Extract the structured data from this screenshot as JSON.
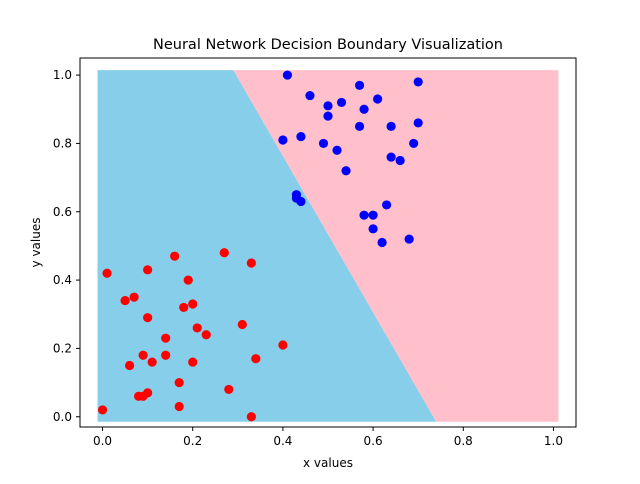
{
  "chart_data": {
    "type": "scatter",
    "title": "Neural Network Decision Boundary Visualization",
    "xlabel": "x values",
    "ylabel": "y values",
    "xlim": [
      -0.05,
      1.05
    ],
    "ylim": [
      -0.03,
      1.05
    ],
    "xticks": [
      "0.0",
      "0.2",
      "0.4",
      "0.6",
      "0.8",
      "1.0"
    ],
    "yticks": [
      "0.0",
      "0.2",
      "0.4",
      "0.6",
      "0.8",
      "1.0"
    ],
    "grid": false,
    "legend": false,
    "boundary": {
      "description": "line separating predicted classes",
      "x_at_y0": 0.74,
      "x_at_y1": 0.29,
      "left_region_color": "#87CEEB",
      "right_region_color": "#FFC0CB"
    },
    "series": [
      {
        "color": "#FF0000",
        "points": [
          [
            0.0,
            0.02
          ],
          [
            0.01,
            0.42
          ],
          [
            0.05,
            0.34
          ],
          [
            0.07,
            0.35
          ],
          [
            0.1,
            0.43
          ],
          [
            0.1,
            0.29
          ],
          [
            0.06,
            0.15
          ],
          [
            0.09,
            0.18
          ],
          [
            0.11,
            0.16
          ],
          [
            0.08,
            0.06
          ],
          [
            0.09,
            0.06
          ],
          [
            0.1,
            0.07
          ],
          [
            0.14,
            0.23
          ],
          [
            0.14,
            0.18
          ],
          [
            0.16,
            0.47
          ],
          [
            0.18,
            0.32
          ],
          [
            0.19,
            0.4
          ],
          [
            0.2,
            0.33
          ],
          [
            0.21,
            0.26
          ],
          [
            0.23,
            0.24
          ],
          [
            0.2,
            0.16
          ],
          [
            0.17,
            0.1
          ],
          [
            0.17,
            0.03
          ],
          [
            0.27,
            0.48
          ],
          [
            0.31,
            0.27
          ],
          [
            0.33,
            0.45
          ],
          [
            0.34,
            0.17
          ],
          [
            0.28,
            0.08
          ],
          [
            0.33,
            0.0
          ],
          [
            0.4,
            0.21
          ]
        ]
      },
      {
        "color": "#0000FF",
        "points": [
          [
            0.41,
            1.0
          ],
          [
            0.46,
            0.94
          ],
          [
            0.5,
            0.91
          ],
          [
            0.5,
            0.88
          ],
          [
            0.53,
            0.92
          ],
          [
            0.57,
            0.97
          ],
          [
            0.58,
            0.9
          ],
          [
            0.61,
            0.93
          ],
          [
            0.7,
            0.98
          ],
          [
            0.57,
            0.85
          ],
          [
            0.64,
            0.85
          ],
          [
            0.7,
            0.86
          ],
          [
            0.4,
            0.81
          ],
          [
            0.44,
            0.82
          ],
          [
            0.49,
            0.8
          ],
          [
            0.52,
            0.78
          ],
          [
            0.54,
            0.72
          ],
          [
            0.64,
            0.76
          ],
          [
            0.66,
            0.75
          ],
          [
            0.69,
            0.8
          ],
          [
            0.43,
            0.65
          ],
          [
            0.43,
            0.64
          ],
          [
            0.44,
            0.63
          ],
          [
            0.58,
            0.59
          ],
          [
            0.6,
            0.59
          ],
          [
            0.63,
            0.62
          ],
          [
            0.6,
            0.55
          ],
          [
            0.62,
            0.51
          ],
          [
            0.68,
            0.52
          ]
        ]
      }
    ]
  }
}
